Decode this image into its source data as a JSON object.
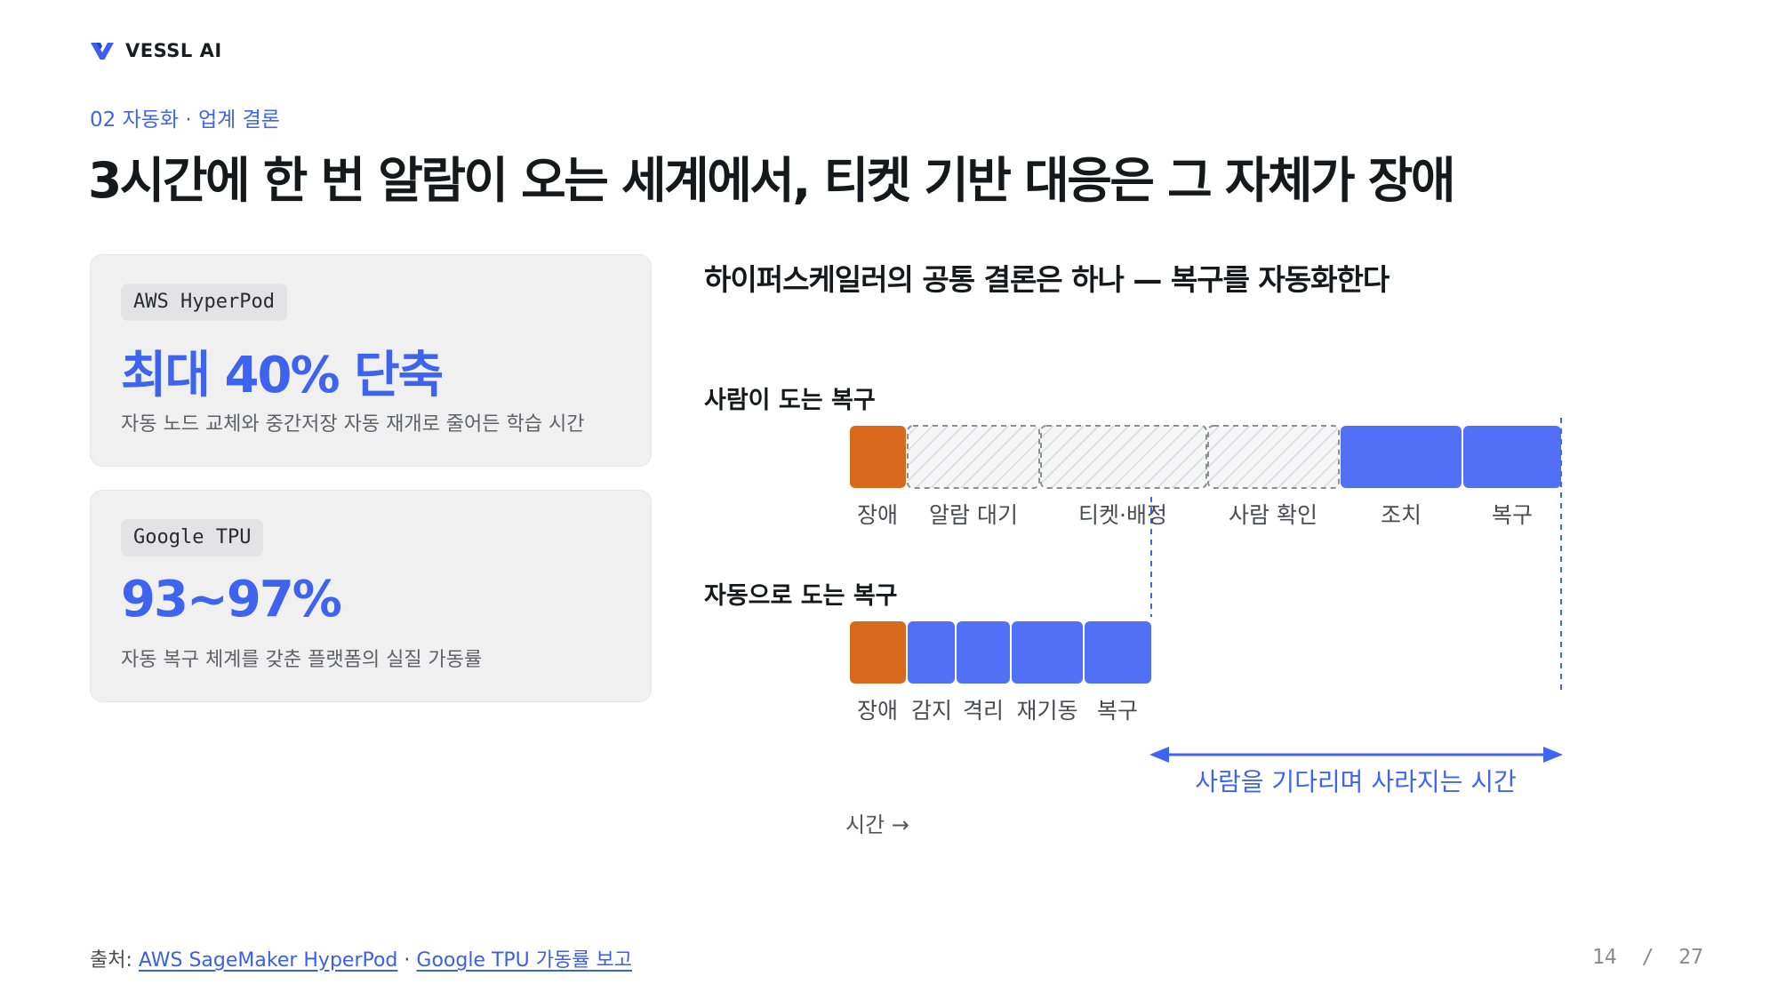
{
  "brand": {
    "name": "VESSL AI",
    "logo_icon": "vessl-logo-icon"
  },
  "eyebrow": "02 자동화 · 업계 결론",
  "title": "3시간에 한 번 알람이 오는 세계에서, 티켓 기반 대응은 그 자체가 장애",
  "cards": [
    {
      "tag": "AWS HyperPod",
      "value": "최대 40% 단축",
      "desc": "자동 노드 교체와 중간저장 자동 재개로 줄어든 학습 시간"
    },
    {
      "tag": "Google TPU",
      "value": "93~97%",
      "desc": "자동 복구 체계를 갖춘 플랫폼의 실질 가동률"
    }
  ],
  "diagram": {
    "title": "하이퍼스케일러의 공통 결론은 하나 — 복구를 자동화한다",
    "manual": {
      "label": "사람이 도는 복구",
      "segments": [
        {
          "label": "장애",
          "kind": "fault"
        },
        {
          "label": "알람 대기",
          "kind": "waiting"
        },
        {
          "label": "티켓·배정",
          "kind": "waiting"
        },
        {
          "label": "사람 확인",
          "kind": "waiting"
        },
        {
          "label": "조치",
          "kind": "action"
        },
        {
          "label": "복구",
          "kind": "action"
        }
      ]
    },
    "auto": {
      "label": "자동으로 도는 복구",
      "segments": [
        {
          "label": "장애",
          "kind": "fault"
        },
        {
          "label": "감지",
          "kind": "action"
        },
        {
          "label": "격리",
          "kind": "action"
        },
        {
          "label": "재기동",
          "kind": "action"
        },
        {
          "label": "복구",
          "kind": "action"
        }
      ]
    },
    "gap_label": "사람을 기다리며 사라지는 시간",
    "time_axis_label": "시간 →",
    "colors": {
      "fault": "#d8681b",
      "action": "#5170f5",
      "waiting_border": "#8d8f96",
      "accent": "#3f63f2"
    }
  },
  "footer": {
    "prefix": "출처: ",
    "source1": "AWS SageMaker HyperPod",
    "separator": " · ",
    "source2": "Google TPU 가동률 보고"
  },
  "pager": {
    "current": "14",
    "separator": "/",
    "total": "27"
  }
}
